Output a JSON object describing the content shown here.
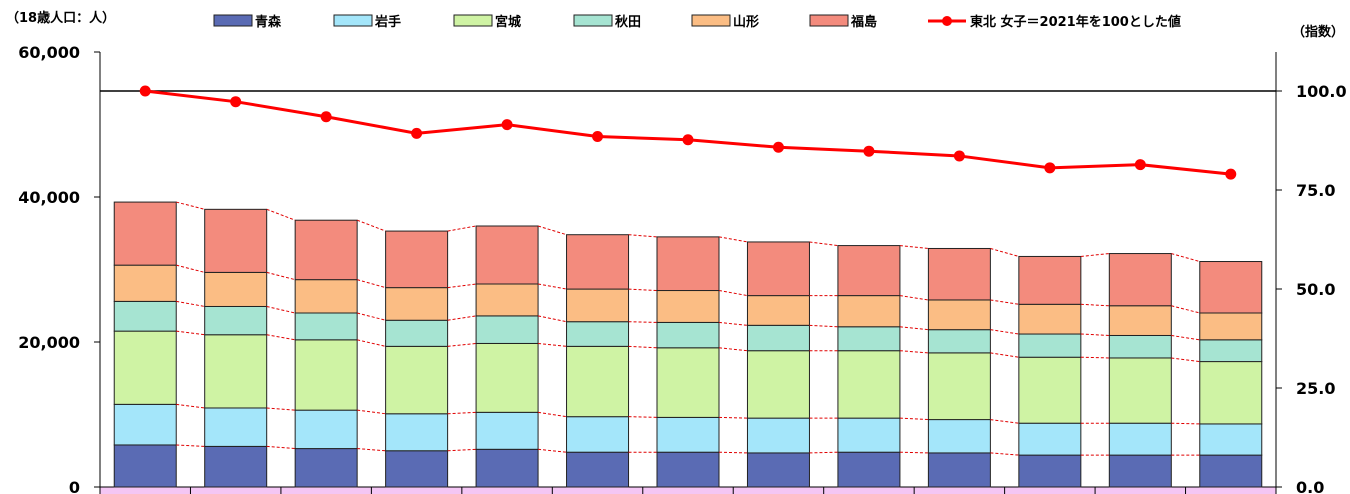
{
  "chart_data": {
    "type": "bar",
    "stacked": true,
    "categories": [
      "",
      "",
      "",
      "",
      "",
      "",
      "",
      "",
      "",
      "",
      "",
      "",
      ""
    ],
    "left_axis": {
      "unit_label": "（18歳人口：人）",
      "ylim": [
        0,
        60000
      ],
      "ticks": [
        "0",
        "20,000",
        "40,000",
        "60,000"
      ],
      "tick_values": [
        0,
        20000,
        40000,
        60000
      ]
    },
    "right_axis": {
      "unit_label": "（指数）",
      "ylim": [
        0,
        100
      ],
      "ticks": [
        "0.0",
        "25.0",
        "50.0",
        "75.0",
        "100.0"
      ],
      "tick_values": [
        0,
        25,
        50,
        75,
        100
      ]
    },
    "reference_line_index": 100,
    "series": [
      {
        "name": "青森",
        "color": "#5a6bb4",
        "values": [
          5800,
          5600,
          5300,
          5000,
          5200,
          4800,
          4800,
          4700,
          4800,
          4700,
          4400,
          4400,
          4400
        ]
      },
      {
        "name": "岩手",
        "color": "#a4e6fa",
        "values": [
          5600,
          5300,
          5300,
          5100,
          5100,
          4900,
          4800,
          4800,
          4700,
          4600,
          4400,
          4400,
          4300
        ]
      },
      {
        "name": "宮城",
        "color": "#cff3a4",
        "values": [
          10100,
          10100,
          9700,
          9300,
          9500,
          9700,
          9600,
          9300,
          9300,
          9200,
          9100,
          9000,
          8600
        ]
      },
      {
        "name": "秋田",
        "color": "#a6e4d2",
        "values": [
          4100,
          3900,
          3700,
          3600,
          3800,
          3400,
          3500,
          3500,
          3300,
          3200,
          3200,
          3100,
          3000
        ]
      },
      {
        "name": "山形",
        "color": "#fbbd84",
        "values": [
          5000,
          4700,
          4600,
          4500,
          4400,
          4500,
          4400,
          4100,
          4300,
          4100,
          4100,
          4100,
          3700
        ]
      },
      {
        "name": "福島",
        "color": "#f38b7d",
        "values": [
          8700,
          8700,
          8200,
          7800,
          8000,
          7500,
          7400,
          7400,
          6900,
          7100,
          6600,
          7200,
          7100
        ]
      }
    ],
    "line_series": {
      "name": "東北 女子＝2021年を100とした値",
      "color": "#ff0000",
      "axis": "right",
      "values": [
        100.0,
        97.3,
        93.5,
        89.3,
        91.5,
        88.5,
        87.7,
        85.8,
        84.8,
        83.6,
        80.6,
        81.4,
        79.0
      ]
    },
    "legend_position": "top",
    "grid": false
  }
}
